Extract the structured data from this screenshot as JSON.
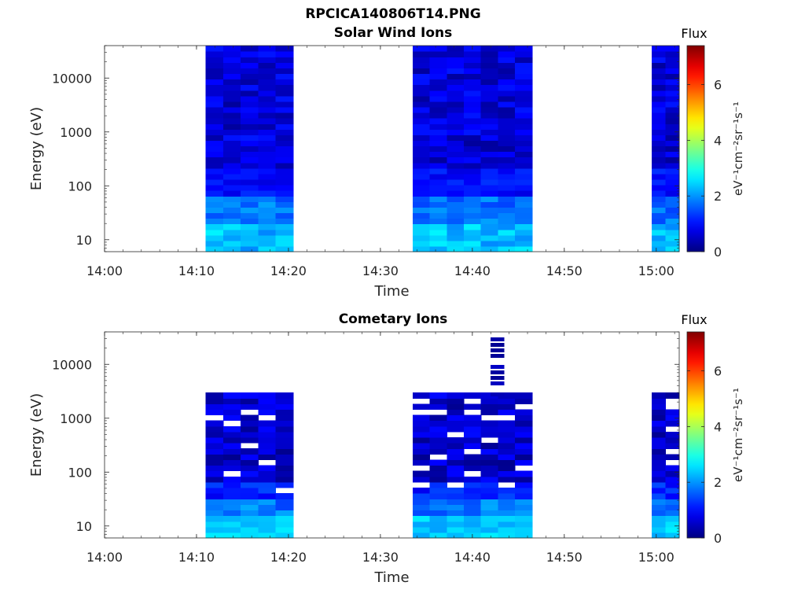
{
  "title": "RPCICA140806T14.PNG",
  "colors": {
    "clim": [
      0,
      7.4
    ]
  },
  "chart_data": [
    {
      "type": "heatmap",
      "title": "Solar Wind Ions",
      "xlabel": "Time",
      "ylabel": "Energy (eV)",
      "xlim": [
        "14:00",
        "15:02.5"
      ],
      "ylim": [
        6,
        40000
      ],
      "yscale": "log",
      "x_ticks": [
        "14:00",
        "14:10",
        "14:20",
        "14:30",
        "14:40",
        "14:50",
        "15:00"
      ],
      "y_ticks": [
        "10",
        "100",
        "1000",
        "10000"
      ],
      "colorbar": {
        "label": "Flux",
        "units": "eV⁻¹cm⁻²sr⁻¹s⁻¹",
        "ticks": [
          "0",
          "2",
          "4",
          "6"
        ],
        "colormap": "jet"
      },
      "blocks": [
        {
          "start": "14:11",
          "end": "14:20.5",
          "profile": "sw"
        },
        {
          "start": "14:33.5",
          "end": "14:46.5",
          "profile": "sw"
        },
        {
          "start": "14:59.5",
          "end": "15:02.5",
          "profile": "sw"
        }
      ]
    },
    {
      "type": "heatmap",
      "title": "Cometary Ions",
      "xlabel": "Time",
      "ylabel": "Energy (eV)",
      "xlim": [
        "14:00",
        "15:02.5"
      ],
      "ylim": [
        6,
        40000
      ],
      "yscale": "log",
      "x_ticks": [
        "14:00",
        "14:10",
        "14:20",
        "14:30",
        "14:40",
        "14:50",
        "15:00"
      ],
      "y_ticks": [
        "10",
        "100",
        "1000",
        "10000"
      ],
      "colorbar": {
        "label": "Flux",
        "units": "eV⁻¹cm⁻²sr⁻¹s⁻¹",
        "ticks": [
          "0",
          "2",
          "4",
          "6"
        ],
        "colormap": "jet"
      },
      "blocks": [
        {
          "start": "14:11",
          "end": "14:20.5",
          "profile": "com",
          "emax": 3000
        },
        {
          "start": "14:33.5",
          "end": "14:46.5",
          "profile": "com",
          "emax": 3000,
          "spike": {
            "start": "14:42",
            "end": "14:43.5",
            "emax": 40000
          }
        },
        {
          "start": "14:59.5",
          "end": "15:02.5",
          "profile": "com",
          "emax": 3000
        }
      ]
    }
  ]
}
